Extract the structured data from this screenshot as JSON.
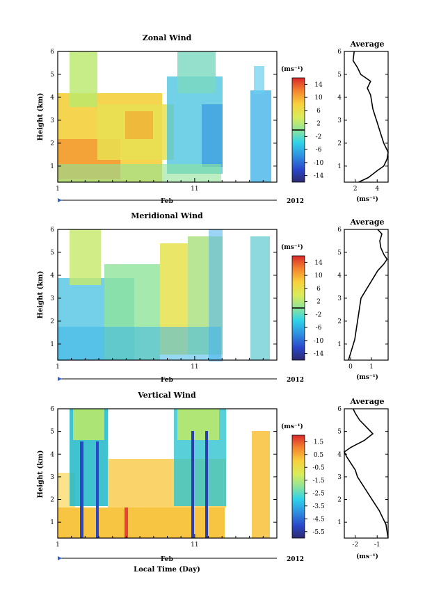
{
  "chart_data": [
    {
      "type": "heatmap",
      "title": "Zonal Wind",
      "ylabel": "Height (km)",
      "yticks": [
        "1",
        "2",
        "3",
        "4",
        "5",
        "6"
      ],
      "ylim": [
        0.3,
        6.0
      ],
      "xticks": [
        "1",
        "11"
      ],
      "xlim": [
        1,
        17
      ],
      "month_label": "Feb",
      "year_label": "2012",
      "colorbar": {
        "unit": "(ms⁻¹)",
        "ticks": [
          "14",
          "10",
          "6",
          "2",
          "-2",
          "-6",
          "-10",
          "-14"
        ],
        "range": [
          -16,
          16
        ],
        "zero_line": true
      },
      "data_gaps_days": [
        [
          13.2,
          15.0
        ]
      ],
      "average_profile": {
        "title": "Average",
        "xlabel": "(ms⁻¹)",
        "xticks": [
          "2",
          "4"
        ],
        "xlim": [
          1,
          5
        ],
        "heights_km": [
          0.3,
          0.5,
          0.8,
          1.0,
          1.3,
          1.6,
          1.8,
          2.0,
          2.3,
          2.6,
          2.9,
          3.2,
          3.5,
          3.8,
          4.1,
          4.4,
          4.7,
          5.0,
          5.3,
          5.6,
          6.0
        ],
        "values": [
          2.3,
          3.2,
          4.0,
          4.6,
          4.9,
          5.0,
          4.8,
          4.6,
          4.4,
          4.2,
          4.0,
          3.8,
          3.6,
          3.5,
          3.4,
          3.1,
          3.4,
          2.5,
          2.2,
          1.8,
          1.9
        ]
      }
    },
    {
      "type": "heatmap",
      "title": "Meridional Wind",
      "ylabel": "Height (km)",
      "yticks": [
        "1",
        "2",
        "3",
        "4",
        "5",
        "6"
      ],
      "ylim": [
        0.3,
        6.0
      ],
      "xticks": [
        "1",
        "11"
      ],
      "xlim": [
        1,
        17
      ],
      "month_label": "Feb",
      "year_label": "2012",
      "colorbar": {
        "unit": "(ms⁻¹)",
        "ticks": [
          "14",
          "10",
          "6",
          "2",
          "-2",
          "-6",
          "-10",
          "-14"
        ],
        "range": [
          -16,
          16
        ],
        "zero_line": true
      },
      "data_gaps_days": [
        [
          13.2,
          15.0
        ]
      ],
      "average_profile": {
        "title": "Average",
        "xlabel": "(ms⁻¹)",
        "xticks": [
          "0",
          "1"
        ],
        "xlim": [
          -0.3,
          1.8
        ],
        "heights_km": [
          0.3,
          0.6,
          0.9,
          1.2,
          1.5,
          1.8,
          2.1,
          2.4,
          2.7,
          3.0,
          3.3,
          3.6,
          3.9,
          4.2,
          4.5,
          4.7,
          4.9,
          5.2,
          5.5,
          5.8,
          6.0
        ],
        "values": [
          -0.1,
          0.0,
          0.1,
          0.2,
          0.25,
          0.3,
          0.35,
          0.4,
          0.45,
          0.5,
          0.7,
          0.9,
          1.1,
          1.3,
          1.6,
          1.75,
          1.6,
          1.45,
          1.4,
          1.5,
          1.3
        ]
      }
    },
    {
      "type": "heatmap",
      "title": "Vertical Wind",
      "xlabel": "Local Time (Day)",
      "ylabel": "Height (km)",
      "yticks": [
        "1",
        "2",
        "3",
        "4",
        "5",
        "6"
      ],
      "ylim": [
        0.3,
        6.0
      ],
      "xticks": [
        "1",
        "11"
      ],
      "xlim": [
        1,
        17
      ],
      "month_label": "Feb",
      "year_label": "2012",
      "colorbar": {
        "unit": "(ms⁻¹)",
        "ticks": [
          "1.5",
          "0.5",
          "-0.5",
          "-1.5",
          "-2.5",
          "-3.5",
          "-4.5",
          "-5.5"
        ],
        "range": [
          -6.0,
          2.0
        ],
        "zero_line": false
      },
      "data_gaps_days": [
        [
          13.2,
          15.0
        ]
      ],
      "average_profile": {
        "title": "Average",
        "xlabel": "(ms⁻¹)",
        "xticks": [
          "-2",
          "-1"
        ],
        "xlim": [
          -2.5,
          -0.5
        ],
        "heights_km": [
          0.3,
          0.6,
          0.9,
          1.2,
          1.5,
          1.8,
          2.1,
          2.4,
          2.7,
          3.0,
          3.3,
          3.6,
          3.9,
          4.1,
          4.3,
          4.6,
          4.9,
          5.2,
          5.5,
          5.8,
          6.0
        ],
        "values": [
          -0.5,
          -0.55,
          -0.6,
          -0.75,
          -0.9,
          -1.1,
          -1.3,
          -1.5,
          -1.7,
          -1.9,
          -2.0,
          -2.2,
          -2.4,
          -2.5,
          -2.2,
          -1.6,
          -1.2,
          -1.5,
          -1.8,
          -2.0,
          -2.1
        ]
      }
    }
  ]
}
